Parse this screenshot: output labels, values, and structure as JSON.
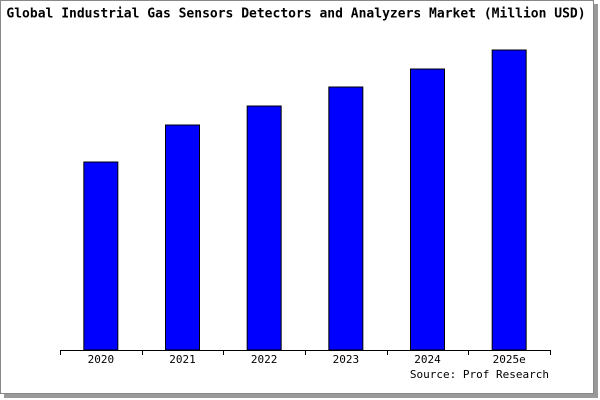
{
  "chart_data": {
    "type": "bar",
    "title": "Global Industrial Gas Sensors Detectors and Analyzers Market (Million USD)",
    "categories": [
      "2020",
      "2021",
      "2022",
      "2023",
      "2024",
      "2025e"
    ],
    "values": [
      188,
      225,
      244,
      263,
      281,
      300
    ],
    "color": "#0000ff",
    "ylim": [
      0,
      302
    ],
    "source": "Source: Prof Research"
  }
}
